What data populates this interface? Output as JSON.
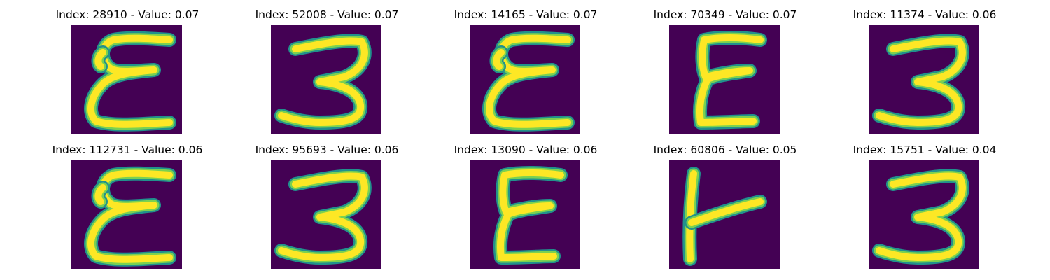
{
  "colors": {
    "background": "#440154",
    "stroke_core": "#fde725",
    "stroke_edge": "#21918c",
    "stroke_mid": "#7ad151"
  },
  "panels": [
    {
      "title": "Index: 28910 - Value: 0.07",
      "glyph": "E-curvy"
    },
    {
      "title": "Index: 52008 - Value: 0.07",
      "glyph": "3"
    },
    {
      "title": "Index: 14165 - Value: 0.07",
      "glyph": "E-curvy"
    },
    {
      "title": "Index: 70349 - Value: 0.07",
      "glyph": "E-block"
    },
    {
      "title": "Index: 11374 - Value: 0.06",
      "glyph": "3"
    },
    {
      "title": "Index: 112731 - Value: 0.06",
      "glyph": "E-curvy"
    },
    {
      "title": "Index: 95693 - Value: 0.06",
      "glyph": "3"
    },
    {
      "title": "Index: 13090 - Value: 0.06",
      "glyph": "E-block"
    },
    {
      "title": "Index: 60806 - Value: 0.05",
      "glyph": "F-stroke"
    },
    {
      "title": "Index: 15751 - Value: 0.04",
      "glyph": "3"
    }
  ]
}
